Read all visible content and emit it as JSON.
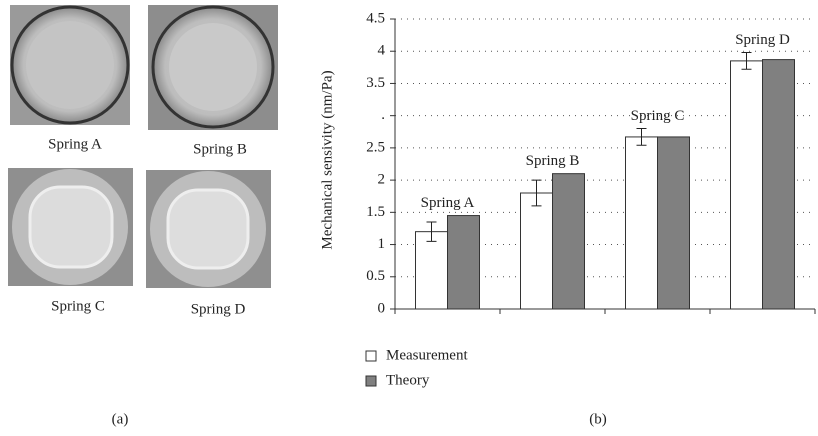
{
  "panel_a": {
    "labels": [
      "Spring A",
      "Spring B",
      "Spring C",
      "Spring D"
    ],
    "caption": "(a)"
  },
  "chart_data": {
    "type": "bar",
    "caption": "(b)",
    "y_label": "Mechanical sensivity (nm/Pa)",
    "categories": [
      "Spring A",
      "Spring B",
      "Spring C",
      "Spring D"
    ],
    "series": [
      {
        "name": "Measurement",
        "color": "#ffffff",
        "values": [
          1.2,
          1.8,
          2.67,
          3.85
        ],
        "errors": [
          0.15,
          0.2,
          0.13,
          0.13
        ]
      },
      {
        "name": "Theory",
        "color": "#808080",
        "values": [
          1.45,
          2.1,
          2.67,
          3.87
        ]
      }
    ],
    "ylim": [
      0,
      4.5
    ],
    "yticks": [
      0,
      0.5,
      1,
      1.5,
      2,
      2.5,
      {
        "value": 3,
        "label": "."
      },
      3.5,
      4,
      4.5
    ],
    "grid": true
  }
}
